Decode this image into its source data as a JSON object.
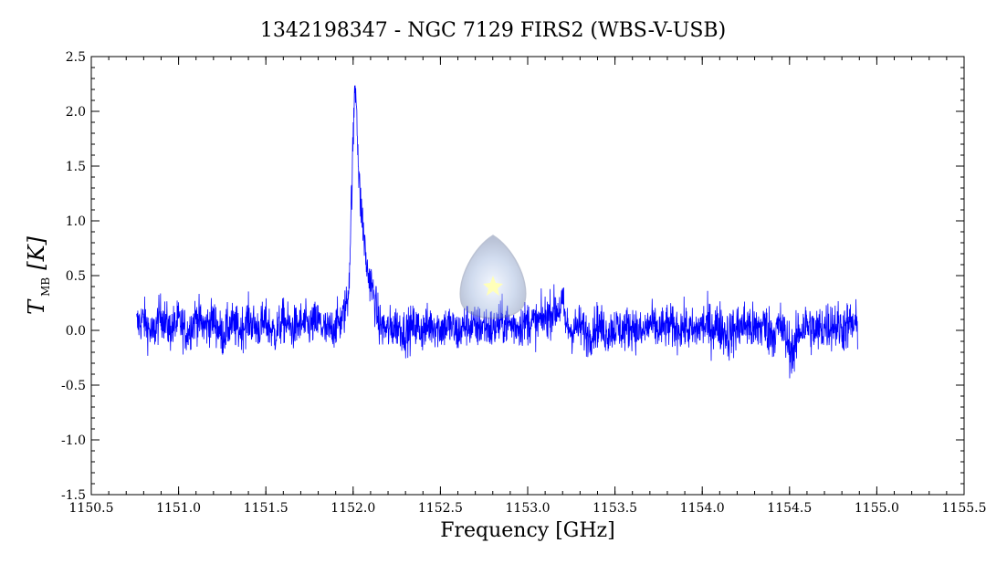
{
  "chart_data": {
    "type": "line",
    "title": "1342198347 - NGC 7129 FIRS2 (WBS-V-USB)",
    "xlabel": "Frequency [GHz]",
    "ylabel": {
      "symbol": "T",
      "subscript": "MB",
      "unit": "[K]"
    },
    "xlim": [
      1150.5,
      1155.5
    ],
    "ylim": [
      -1.5,
      2.5
    ],
    "x_ticks": [
      1150.5,
      1151.0,
      1151.5,
      1152.0,
      1152.5,
      1153.0,
      1153.5,
      1154.0,
      1154.5,
      1155.0,
      1155.5
    ],
    "x_tick_labels": [
      "1150.5",
      "1151.0",
      "1151.5",
      "1152.0",
      "1152.5",
      "1153.0",
      "1153.5",
      "1154.0",
      "1154.5",
      "1155.0",
      "1155.5"
    ],
    "y_ticks": [
      -1.5,
      -1.0,
      -0.5,
      0.0,
      0.5,
      1.0,
      1.5,
      2.0,
      2.5
    ],
    "y_tick_labels": [
      "-1.5",
      "-1.0",
      "-0.5",
      "0.0",
      "0.5",
      "1.0",
      "1.5",
      "2.0",
      "2.5"
    ],
    "grid": false,
    "series": [
      {
        "color": "#0000ff",
        "x": [
          1150.76,
          1150.8,
          1150.85,
          1150.9,
          1150.95,
          1151.0,
          1151.05,
          1151.1,
          1151.15,
          1151.2,
          1151.25,
          1151.3,
          1151.35,
          1151.4,
          1151.45,
          1151.5,
          1151.55,
          1151.6,
          1151.65,
          1151.7,
          1151.75,
          1151.8,
          1151.85,
          1151.9,
          1151.94,
          1151.97,
          1151.98,
          1151.99,
          1152.0,
          1152.01,
          1152.02,
          1152.03,
          1152.04,
          1152.05,
          1152.06,
          1152.07,
          1152.08,
          1152.1,
          1152.12,
          1152.15,
          1152.2,
          1152.25,
          1152.3,
          1152.35,
          1152.4,
          1152.45,
          1152.5,
          1152.55,
          1152.6,
          1152.65,
          1152.7,
          1152.75,
          1152.8,
          1152.85,
          1152.9,
          1152.95,
          1153.0,
          1153.05,
          1153.1,
          1153.15,
          1153.18,
          1153.2,
          1153.22,
          1153.25,
          1153.3,
          1153.35,
          1153.4,
          1153.45,
          1153.5,
          1153.55,
          1153.6,
          1153.65,
          1153.7,
          1153.75,
          1153.8,
          1153.85,
          1153.9,
          1153.95,
          1154.0,
          1154.05,
          1154.1,
          1154.15,
          1154.2,
          1154.25,
          1154.3,
          1154.35,
          1154.4,
          1154.45,
          1154.5,
          1154.53,
          1154.55,
          1154.6,
          1154.65,
          1154.7,
          1154.75,
          1154.8,
          1154.85,
          1154.89
        ],
        "y": [
          0.05,
          0.1,
          -0.05,
          0.15,
          0.0,
          0.08,
          -0.02,
          0.12,
          0.03,
          0.1,
          -0.05,
          0.06,
          0.0,
          0.1,
          0.02,
          0.07,
          -0.03,
          0.09,
          0.01,
          0.06,
          0.04,
          0.08,
          -0.02,
          0.05,
          0.1,
          0.3,
          0.6,
          1.2,
          1.7,
          2.25,
          2.1,
          1.5,
          1.2,
          1.05,
          0.9,
          0.7,
          0.55,
          0.45,
          0.3,
          0.05,
          0.0,
          0.05,
          -0.02,
          0.04,
          0.0,
          0.06,
          0.02,
          0.05,
          -0.03,
          0.06,
          0.02,
          0.05,
          0.0,
          0.08,
          0.05,
          0.04,
          0.08,
          0.06,
          0.12,
          0.18,
          0.2,
          0.25,
          0.05,
          0.0,
          0.04,
          -0.05,
          0.06,
          -0.02,
          0.03,
          0.0,
          0.05,
          -0.04,
          0.06,
          0.0,
          0.04,
          0.02,
          0.03,
          -0.02,
          0.05,
          0.03,
          0.04,
          -0.05,
          0.02,
          0.06,
          0.0,
          0.05,
          -0.03,
          0.04,
          -0.15,
          -0.2,
          0.0,
          0.05,
          -0.02,
          0.04,
          0.06,
          0.02,
          0.05,
          0.03
        ]
      }
    ]
  }
}
